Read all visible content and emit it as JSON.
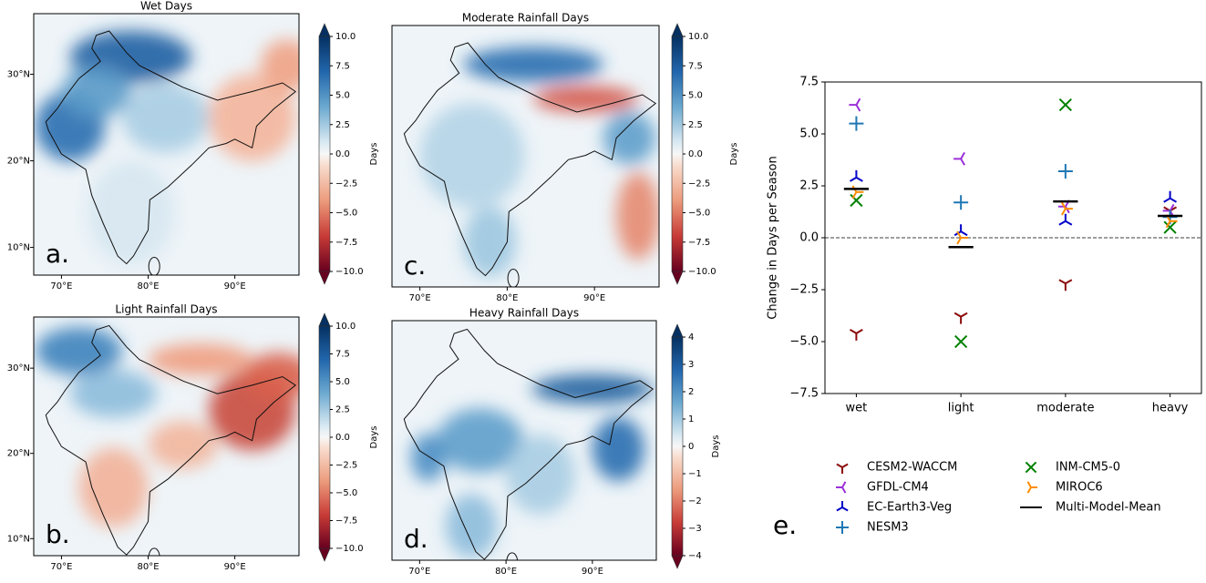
{
  "chart_data": [
    {
      "type": "map",
      "title": "Wet Days",
      "panel_label": "a.",
      "xticks": [
        {
          "value": 70,
          "label": "70°E"
        },
        {
          "value": 80,
          "label": "80°E"
        },
        {
          "value": 90,
          "label": "90°E"
        }
      ],
      "yticks": [
        {
          "value": 30,
          "label": "30°N"
        },
        {
          "value": 20,
          "label": "20°N"
        },
        {
          "value": 10,
          "label": "10°N"
        }
      ],
      "colorbar_label": "Days",
      "colorbar_lim": [
        -10,
        10
      ],
      "colorbar_ticks": [
        {
          "value": 10,
          "label": "10.0"
        },
        7.5,
        {
          "value": 5,
          "label": "5.0"
        },
        2.5,
        {
          "value": 0,
          "label": "0.0"
        },
        {
          "value": -2.5,
          "label": "−2.5"
        },
        {
          "value": -5,
          "label": "−5.0"
        },
        {
          "value": -7.5,
          "label": "−7.5"
        },
        {
          "value": -10,
          "label": "−10.0"
        }
      ]
    },
    {
      "type": "map",
      "title": "Light Rainfall Days",
      "panel_label": "b.",
      "xticks": [
        {
          "value": 70,
          "label": "70°E"
        },
        {
          "value": 80,
          "label": "80°E"
        },
        {
          "value": 90,
          "label": "90°E"
        }
      ],
      "yticks": [
        {
          "value": 30,
          "label": "30°N"
        },
        {
          "value": 20,
          "label": "20°N"
        },
        {
          "value": 10,
          "label": "10°N"
        }
      ],
      "colorbar_label": "Days",
      "colorbar_lim": [
        -10,
        10
      ],
      "colorbar_ticks": [
        {
          "value": 10,
          "label": "10.0"
        },
        7.5,
        {
          "value": 5,
          "label": "5.0"
        },
        2.5,
        {
          "value": 0,
          "label": "0.0"
        },
        {
          "value": -2.5,
          "label": "−2.5"
        },
        {
          "value": -5,
          "label": "−5.0"
        },
        {
          "value": -7.5,
          "label": "−7.5"
        },
        {
          "value": -10,
          "label": "−10.0"
        }
      ]
    },
    {
      "type": "map",
      "title": "Moderate Rainfall Days",
      "panel_label": "c.",
      "xticks": [
        {
          "value": 70,
          "label": "70°E"
        },
        {
          "value": 80,
          "label": "80°E"
        },
        {
          "value": 90,
          "label": "90°E"
        }
      ],
      "colorbar_label": "Days",
      "colorbar_lim": [
        -10,
        10
      ],
      "colorbar_ticks": [
        {
          "value": 10,
          "label": "10.0"
        },
        7.5,
        {
          "value": 5,
          "label": "5.0"
        },
        2.5,
        {
          "value": 0,
          "label": "0.0"
        },
        {
          "value": -2.5,
          "label": "−2.5"
        },
        {
          "value": -5,
          "label": "−5.0"
        },
        {
          "value": -7.5,
          "label": "−7.5"
        },
        {
          "value": -10,
          "label": "−10.0"
        }
      ]
    },
    {
      "type": "map",
      "title": "Heavy Rainfall Days",
      "panel_label": "d.",
      "xticks": [
        {
          "value": 70,
          "label": "70°E"
        },
        {
          "value": 80,
          "label": "80°E"
        },
        {
          "value": 90,
          "label": "90°E"
        }
      ],
      "colorbar_label": "Days",
      "colorbar_lim": [
        -4,
        4
      ],
      "colorbar_ticks": [
        4,
        3,
        2,
        1,
        0,
        {
          "value": -1,
          "label": "−1"
        },
        {
          "value": -2,
          "label": "−2"
        },
        {
          "value": -3,
          "label": "−3"
        },
        {
          "value": -4,
          "label": "−4"
        }
      ]
    },
    {
      "type": "scatter",
      "panel_label": "e.",
      "ylabel": "Change in Days per Season",
      "categories": [
        "wet",
        "light",
        "moderate",
        "heavy"
      ],
      "ylim": [
        -7.5,
        7.5
      ],
      "yticks": [
        7.5,
        {
          "value": 5,
          "label": "5.0"
        },
        2.5,
        {
          "value": 0,
          "label": "0.0"
        },
        {
          "value": -2.5,
          "label": "−2.5"
        },
        {
          "value": -5,
          "label": "−5.0"
        },
        {
          "value": -7.5,
          "label": "−7.5"
        }
      ],
      "reference_line": 0,
      "series": [
        {
          "name": "CESM2-WACCM",
          "color": "#8b0a0a",
          "marker": "tri_down",
          "values": [
            -4.6,
            -3.8,
            -2.2,
            1.3
          ]
        },
        {
          "name": "GFDL-CM4",
          "color": "#9b30d9",
          "marker": "tri_left",
          "values": [
            6.4,
            3.8,
            1.5,
            1.3
          ]
        },
        {
          "name": "EC-Earth3-Veg",
          "color": "#0000c8",
          "marker": "tri_up",
          "values": [
            2.9,
            0.3,
            0.8,
            1.9
          ]
        },
        {
          "name": "NESM3",
          "color": "#1f77b4",
          "marker": "plus",
          "values": [
            5.5,
            1.7,
            3.2,
            1.0
          ]
        },
        {
          "name": "INM-CM5-0",
          "color": "#008000",
          "marker": "x",
          "values": [
            1.8,
            -5.0,
            6.4,
            0.5
          ]
        },
        {
          "name": "MIROC6",
          "color": "#ff8c00",
          "marker": "tri_right",
          "values": [
            2.2,
            0.0,
            1.4,
            0.8
          ]
        },
        {
          "name": "Multi-Model-Mean",
          "color": "#000000",
          "marker": "hline",
          "values": [
            2.35,
            -0.45,
            1.75,
            1.05
          ]
        }
      ]
    }
  ]
}
